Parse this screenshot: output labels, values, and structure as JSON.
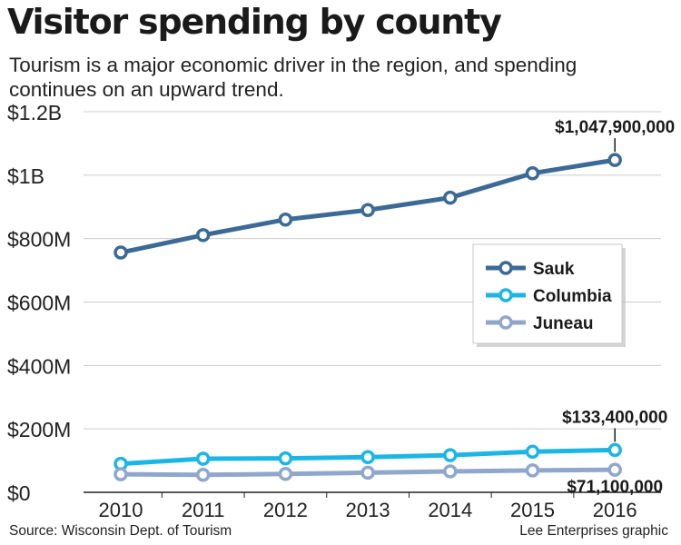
{
  "header": {
    "title": "Visitor spending by county",
    "subtitle": "Tourism is a major economic driver in the region, and spending continues on an upward trend."
  },
  "footer": {
    "source": "Source: Wisconsin Dept. of Tourism",
    "credit": "Lee Enterprises graphic"
  },
  "colors": {
    "sauk": "#3c6a96",
    "columbia": "#1cb6e6",
    "juneau": "#8fa7cc",
    "grid": "#cccccc",
    "axis": "#222222"
  },
  "chart_data": {
    "type": "line",
    "title": "Visitor spending by county",
    "x": [
      "2010",
      "2011",
      "2012",
      "2013",
      "2014",
      "2015",
      "2016"
    ],
    "ylim": [
      0,
      1200000000
    ],
    "yticks": [
      0,
      200000000,
      400000000,
      600000000,
      800000000,
      1000000000,
      1200000000
    ],
    "ytick_labels": [
      "$0",
      "$200M",
      "$400M",
      "$600M",
      "$800M",
      "$1B",
      "$1.2B"
    ],
    "grid": true,
    "legend_position": "center-right",
    "series": [
      {
        "name": "Sauk",
        "key": "sauk",
        "values": [
          756000000,
          811000000,
          860000000,
          890000000,
          929000000,
          1006000000,
          1047900000
        ]
      },
      {
        "name": "Columbia",
        "key": "columbia",
        "values": [
          90000000,
          106000000,
          107000000,
          111000000,
          117000000,
          128000000,
          133400000
        ]
      },
      {
        "name": "Juneau",
        "key": "juneau",
        "values": [
          57000000,
          55000000,
          58000000,
          62000000,
          66000000,
          69000000,
          71100000
        ]
      }
    ],
    "annotations": [
      {
        "text": "$1,047,900,000",
        "series": "sauk",
        "index": 6
      },
      {
        "text": "$133,400,000",
        "series": "columbia",
        "index": 6
      },
      {
        "text": "$71,100,000",
        "series": "juneau",
        "index": 6
      }
    ]
  }
}
